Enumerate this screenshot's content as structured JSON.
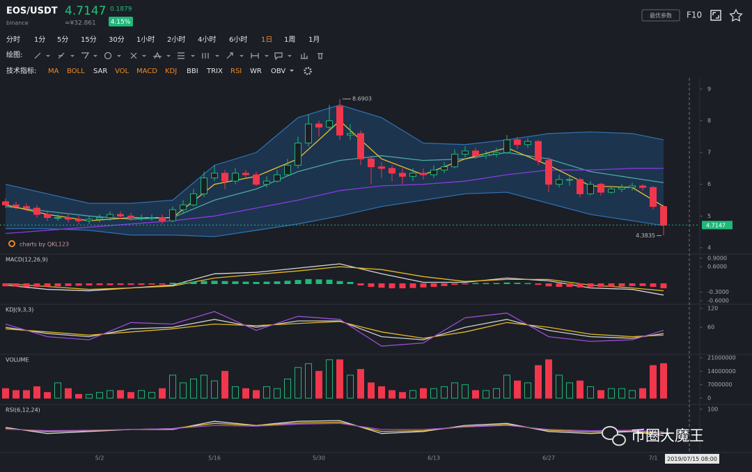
{
  "header": {
    "symbol": "EOS/USDT",
    "exchange": "binance",
    "price": "4.7147",
    "change": "0.1879",
    "cny": "≈¥32.861",
    "percent": "4.15%",
    "button": "最优参数",
    "f10": "F10"
  },
  "toolbar": {
    "timeframes": [
      "分时",
      "1分",
      "5分",
      "15分",
      "30分",
      "1小时",
      "2小时",
      "4小时",
      "6小时",
      "1日",
      "1周",
      "1月"
    ],
    "active_timeframe": 9,
    "drawing_label": "绘图:",
    "indicator_label": "技术指标:",
    "indicators": [
      {
        "label": "MA",
        "active": true
      },
      {
        "label": "BOLL",
        "active": true
      },
      {
        "label": "SAR",
        "active": false
      },
      {
        "label": "VOL",
        "active": true
      },
      {
        "label": "MACD",
        "active": true
      },
      {
        "label": "KDJ",
        "active": true
      },
      {
        "label": "BBI",
        "active": false
      },
      {
        "label": "TRIX",
        "active": false
      },
      {
        "label": "RSI",
        "active": true
      },
      {
        "label": "WR",
        "active": false
      },
      {
        "label": "OBV",
        "active": false
      }
    ]
  },
  "crosshair_time": "2019/07/15 08:00",
  "credit": "charts by QKL123",
  "watermark": "币圈大魔王",
  "chart_data": [
    {
      "type": "candlestick",
      "categories": [
        null,
        null,
        null,
        null,
        null,
        null,
        null,
        null,
        null,
        "5/2",
        null,
        null,
        null,
        null,
        null,
        null,
        null,
        null,
        null,
        null,
        "5/16",
        null,
        null,
        null,
        null,
        null,
        null,
        null,
        null,
        null,
        "5/30",
        null,
        null,
        null,
        null,
        null,
        null,
        null,
        null,
        null,
        null,
        "6/13",
        null,
        null,
        null,
        null,
        null,
        null,
        null,
        null,
        null,
        null,
        "6/27",
        null,
        null,
        null,
        null,
        null,
        null,
        null,
        null,
        null,
        "7/1",
        null
      ],
      "open": [
        5.45,
        5.35,
        5.3,
        5.25,
        5.05,
        4.95,
        4.95,
        4.9,
        4.85,
        4.9,
        4.95,
        5.05,
        5.0,
        4.95,
        4.95,
        4.95,
        4.85,
        5.2,
        5.35,
        5.7,
        6.2,
        6.35,
        6.1,
        6.35,
        6.3,
        6.0,
        6.1,
        6.3,
        6.6,
        7.3,
        7.9,
        7.8,
        8.45,
        7.55,
        7.6,
        6.8,
        6.55,
        6.5,
        6.35,
        6.25,
        6.35,
        6.3,
        6.45,
        6.55,
        6.95,
        7.05,
        6.9,
        6.95,
        7.0,
        7.4,
        7.25,
        7.35,
        6.75,
        6.0,
        6.15,
        6.15,
        5.7,
        6.0,
        5.75,
        5.85,
        5.9,
        5.95,
        5.9,
        5.3
      ],
      "high": [
        5.55,
        5.45,
        5.4,
        5.35,
        5.15,
        5.05,
        5.05,
        5.0,
        5.0,
        5.05,
        5.15,
        5.15,
        5.1,
        5.05,
        5.05,
        5.05,
        5.3,
        5.5,
        5.85,
        6.4,
        6.6,
        6.45,
        6.5,
        6.45,
        6.4,
        6.25,
        6.45,
        6.8,
        7.5,
        8.2,
        8.0,
        8.5,
        8.6903,
        7.9,
        7.7,
        6.9,
        6.7,
        6.6,
        6.5,
        6.5,
        6.5,
        6.6,
        6.7,
        7.1,
        7.2,
        7.15,
        7.05,
        7.15,
        7.55,
        7.5,
        7.45,
        7.4,
        6.85,
        6.3,
        6.25,
        6.2,
        6.1,
        6.05,
        5.95,
        6.0,
        6.05,
        6.0,
        5.95,
        5.35
      ],
      "low": [
        5.25,
        5.2,
        5.15,
        4.95,
        4.85,
        4.85,
        4.8,
        4.75,
        4.75,
        4.8,
        4.85,
        4.9,
        4.85,
        4.85,
        4.85,
        4.75,
        4.8,
        5.1,
        5.3,
        5.6,
        6.1,
        5.85,
        6.0,
        6.2,
        5.95,
        5.9,
        6.05,
        6.25,
        6.5,
        7.2,
        7.5,
        7.7,
        7.4,
        7.4,
        6.6,
        6.0,
        6.2,
        6.1,
        6.0,
        6.1,
        6.15,
        6.2,
        6.35,
        6.5,
        6.85,
        6.8,
        6.8,
        6.85,
        6.95,
        7.1,
        7.15,
        6.6,
        5.75,
        5.9,
        5.95,
        5.6,
        5.65,
        5.65,
        5.7,
        5.75,
        5.8,
        5.8,
        5.2,
        4.3835
      ],
      "close": [
        5.35,
        5.3,
        5.25,
        5.05,
        4.95,
        4.95,
        4.9,
        4.85,
        4.9,
        4.95,
        5.05,
        5.0,
        4.95,
        4.95,
        4.95,
        4.85,
        5.2,
        5.35,
        5.7,
        6.2,
        6.35,
        6.1,
        6.35,
        6.3,
        6.0,
        6.1,
        6.3,
        6.6,
        7.3,
        7.9,
        7.8,
        8.0,
        7.55,
        7.6,
        6.8,
        6.55,
        6.5,
        6.35,
        6.25,
        6.35,
        6.3,
        6.45,
        6.55,
        6.95,
        7.05,
        6.9,
        6.95,
        7.0,
        7.4,
        7.25,
        7.35,
        6.75,
        6.0,
        6.15,
        6.15,
        5.7,
        6.0,
        5.75,
        5.85,
        5.9,
        5.95,
        5.9,
        5.3,
        4.7147
      ],
      "up_color": "#1fb97a",
      "down_color": "#f2364c",
      "ylim": [
        3.8,
        9.35
      ],
      "yticks": [
        4,
        5,
        6,
        7,
        8,
        9
      ],
      "fill_between": [
        0,
        1
      ],
      "fill_color": "#1f4f80",
      "lines": [
        {
          "color": "#2f6fae",
          "x": [
            0,
            4,
            8,
            12,
            16,
            20,
            24,
            28,
            32,
            36,
            40,
            44,
            48,
            52,
            56,
            60,
            63
          ],
          "values": [
            6.0,
            5.7,
            5.4,
            5.4,
            5.5,
            6.6,
            7.0,
            8.1,
            8.5,
            8.1,
            7.3,
            7.25,
            7.4,
            7.6,
            7.65,
            7.6,
            7.4
          ]
        },
        {
          "color": "#2f6fae",
          "x": [
            0,
            4,
            8,
            12,
            16,
            20,
            24,
            28,
            32,
            36,
            40,
            44,
            48,
            52,
            56,
            60,
            63
          ],
          "values": [
            4.6,
            4.6,
            4.55,
            4.4,
            4.4,
            4.35,
            4.55,
            4.75,
            5.0,
            5.3,
            5.5,
            5.7,
            5.75,
            5.4,
            5.05,
            4.85,
            4.7
          ]
        },
        {
          "color": "#4fa7a7",
          "x": [
            0,
            4,
            8,
            12,
            16,
            20,
            24,
            28,
            32,
            36,
            40,
            44,
            48,
            52,
            56,
            60,
            63
          ],
          "values": [
            5.3,
            5.15,
            5.0,
            4.9,
            4.95,
            5.5,
            5.85,
            6.4,
            6.75,
            6.9,
            6.75,
            6.8,
            7.0,
            6.8,
            6.4,
            6.2,
            6.05
          ]
        },
        {
          "color": "#8a3be0",
          "x": [
            0,
            4,
            8,
            12,
            16,
            20,
            24,
            28,
            32,
            36,
            40,
            44,
            48,
            52,
            56,
            60,
            63
          ],
          "values": [
            4.45,
            4.55,
            4.65,
            4.75,
            4.85,
            5.0,
            5.25,
            5.5,
            5.8,
            5.95,
            6.0,
            6.1,
            6.3,
            6.45,
            6.45,
            6.5,
            6.5
          ]
        },
        {
          "color": "#f2c12e",
          "x": [
            0,
            4,
            8,
            12,
            16,
            20,
            24,
            28,
            32,
            36,
            40,
            44,
            48,
            52,
            56,
            60,
            63
          ],
          "values": [
            5.35,
            5.05,
            4.85,
            4.95,
            4.95,
            6.0,
            6.25,
            6.8,
            8.0,
            6.8,
            6.3,
            6.8,
            7.15,
            6.6,
            5.95,
            5.9,
            5.3
          ]
        }
      ]
    },
    {
      "type": "bar",
      "title": "MACD(12,26,9)",
      "color_by": "sign",
      "up_color": "#1fb97a",
      "down_color": "#f2364c",
      "values": [
        -0.08,
        -0.09,
        -0.1,
        -0.1,
        -0.09,
        -0.08,
        -0.07,
        -0.06,
        -0.05,
        -0.04,
        -0.04,
        -0.03,
        -0.03,
        -0.03,
        -0.02,
        -0.02,
        0.02,
        0.04,
        0.06,
        0.08,
        0.09,
        0.08,
        0.07,
        0.06,
        0.05,
        0.06,
        0.07,
        0.09,
        0.12,
        0.15,
        0.14,
        0.13,
        0.08,
        0.05,
        -0.05,
        -0.1,
        -0.13,
        -0.15,
        -0.15,
        -0.14,
        -0.12,
        -0.1,
        -0.07,
        -0.03,
        -0.01,
        0.01,
        0.01,
        0.01,
        0.03,
        0.02,
        0.01,
        -0.03,
        -0.08,
        -0.1,
        -0.1,
        -0.12,
        -0.1,
        -0.1,
        -0.09,
        -0.08,
        -0.07,
        -0.07,
        -0.1,
        -0.15
      ],
      "ylim": [
        -0.7,
        1.02
      ],
      "yticks": [
        {
          "value": -0.6,
          "label": "-0.6000"
        },
        {
          "value": -0.3,
          "label": "-0.3000"
        },
        {
          "value": 0.6,
          "label": "0.6000"
        },
        {
          "value": 0.9,
          "label": "0.9000"
        }
      ],
      "lines": [
        {
          "color": "#d8d8d8",
          "x": [
            0,
            4,
            8,
            12,
            16,
            20,
            24,
            28,
            32,
            36,
            40,
            44,
            48,
            52,
            56,
            60,
            63
          ],
          "values": [
            -0.05,
            -0.2,
            -0.25,
            -0.15,
            -0.05,
            0.35,
            0.4,
            0.55,
            0.7,
            0.35,
            0.05,
            0.05,
            0.2,
            0.1,
            -0.15,
            -0.2,
            -0.4
          ]
        },
        {
          "color": "#e8b923",
          "x": [
            0,
            4,
            8,
            12,
            16,
            20,
            24,
            28,
            32,
            36,
            40,
            44,
            48,
            52,
            56,
            60,
            63
          ],
          "values": [
            0.0,
            -0.1,
            -0.2,
            -0.15,
            -0.08,
            0.2,
            0.33,
            0.45,
            0.6,
            0.5,
            0.25,
            0.08,
            0.15,
            0.15,
            -0.05,
            -0.15,
            -0.25
          ]
        }
      ]
    },
    {
      "type": "line",
      "title": "KDJ(9,3,3)",
      "ylim": [
        -24,
        131
      ],
      "yticks": [
        60,
        120
      ],
      "lines": [
        {
          "color": "#cfcfcf",
          "x": [
            0,
            4,
            8,
            12,
            16,
            20,
            24,
            28,
            32,
            36,
            40,
            44,
            48,
            52,
            56,
            60,
            63
          ],
          "values": [
            60,
            40,
            30,
            55,
            60,
            85,
            60,
            80,
            80,
            30,
            20,
            60,
            85,
            50,
            30,
            25,
            40
          ]
        },
        {
          "color": "#e8b923",
          "x": [
            0,
            4,
            8,
            12,
            16,
            20,
            24,
            28,
            32,
            36,
            40,
            44,
            48,
            52,
            56,
            60,
            63
          ],
          "values": [
            55,
            45,
            35,
            45,
            55,
            70,
            65,
            72,
            78,
            45,
            25,
            45,
            75,
            60,
            38,
            30,
            35
          ]
        },
        {
          "color": "#9b4fd6",
          "x": [
            0,
            4,
            8,
            12,
            16,
            20,
            24,
            28,
            32,
            36,
            40,
            44,
            48,
            52,
            56,
            60,
            63
          ],
          "values": [
            70,
            30,
            20,
            75,
            70,
            110,
            50,
            95,
            85,
            0,
            10,
            90,
            105,
            30,
            15,
            20,
            50
          ]
        }
      ]
    },
    {
      "type": "bar",
      "title": "VOLUME",
      "color_by": "direction",
      "up_color": "#1fb97a",
      "down_color": "#f2364c",
      "values": [
        5000000,
        4000000,
        4000000,
        6000000,
        3000000,
        8000000,
        5000000,
        2000000,
        2000000,
        3000000,
        4000000,
        4000000,
        3000000,
        4000000,
        3000000,
        5000000,
        12000000,
        8000000,
        10000000,
        12000000,
        9000000,
        14000000,
        6000000,
        5000000,
        4000000,
        6000000,
        5000000,
        10000000,
        16000000,
        18000000,
        14000000,
        20000000,
        20000000,
        12000000,
        15000000,
        8000000,
        6000000,
        4000000,
        3000000,
        4000000,
        5000000,
        5000000,
        6000000,
        8000000,
        7000000,
        4000000,
        4000000,
        5000000,
        12000000,
        9000000,
        8000000,
        17000000,
        20000000,
        12000000,
        8000000,
        9000000,
        6000000,
        4000000,
        5000000,
        5000000,
        4000000,
        5000000,
        17000000,
        18000000
      ],
      "ylim": [
        -2900000,
        22450000
      ],
      "yticks": [
        0,
        7000000,
        14000000,
        21000000
      ]
    },
    {
      "type": "line",
      "title": "RSI(6,12,24)",
      "ylim": [
        -7,
        110
      ],
      "yticks": [
        100
      ],
      "lines": [
        {
          "color": "#d8d8d8",
          "x": [
            0,
            4,
            8,
            12,
            16,
            20,
            24,
            28,
            32,
            36,
            40,
            44,
            48,
            52,
            56,
            60,
            63
          ],
          "values": [
            55,
            40,
            45,
            50,
            50,
            70,
            60,
            70,
            72,
            40,
            45,
            60,
            65,
            45,
            40,
            45,
            35
          ]
        },
        {
          "color": "#e8b923",
          "x": [
            0,
            4,
            8,
            12,
            16,
            20,
            24,
            28,
            32,
            36,
            40,
            44,
            48,
            52,
            56,
            60,
            63
          ],
          "values": [
            52,
            45,
            47,
            50,
            52,
            65,
            60,
            66,
            68,
            45,
            47,
            57,
            62,
            48,
            44,
            46,
            40
          ]
        },
        {
          "color": "#9b4fd6",
          "x": [
            0,
            4,
            8,
            12,
            16,
            20,
            24,
            28,
            32,
            36,
            40,
            44,
            48,
            52,
            56,
            60,
            63
          ],
          "values": [
            51,
            47,
            48,
            50,
            52,
            60,
            58,
            63,
            65,
            50,
            50,
            56,
            60,
            50,
            47,
            48,
            44
          ]
        }
      ]
    }
  ]
}
